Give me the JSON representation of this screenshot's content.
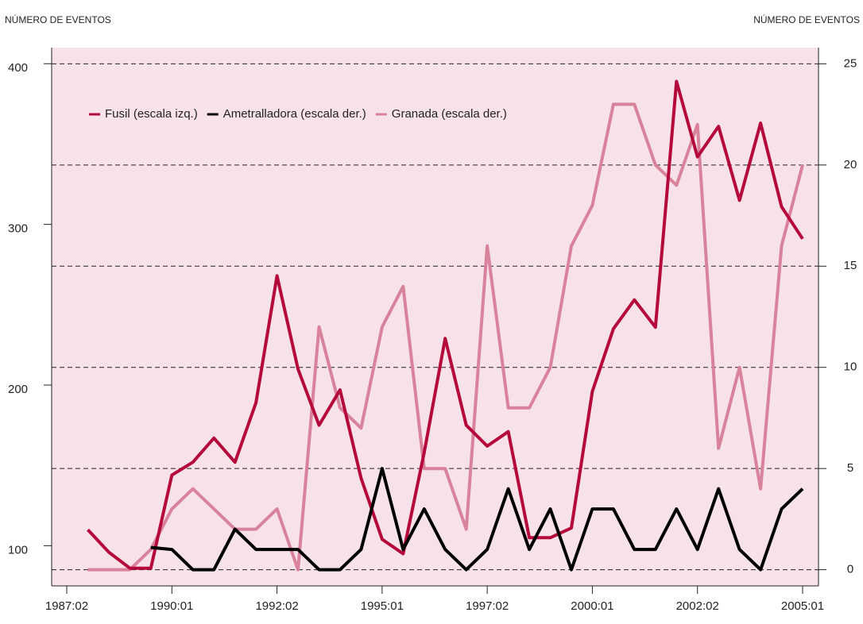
{
  "chart_data": {
    "type": "line",
    "y_label": "NÚMERO DE EVENTOS",
    "y2_label": "NÚMERO DE EVENTOS",
    "categories": [
      "1987:02",
      null,
      null,
      null,
      null,
      "1990:01",
      null,
      null,
      null,
      null,
      "1992:02",
      null,
      null,
      null,
      null,
      "1995:01",
      null,
      null,
      null,
      null,
      "1997:02",
      null,
      null,
      null,
      null,
      "2000:01",
      null,
      null,
      null,
      null,
      "2002:02",
      null,
      null,
      null,
      null,
      "2005:01"
    ],
    "series": [
      {
        "name": "Fusil (escala izq.)",
        "color": "#b5083b",
        "axis": "y",
        "values": [
          null,
          110,
          96,
          86,
          86,
          144,
          152,
          167,
          152,
          189,
          268,
          210,
          175,
          197,
          142,
          104,
          95,
          158,
          229,
          175,
          162,
          171,
          105,
          105,
          111,
          196,
          235,
          253,
          236,
          389,
          342,
          361,
          315,
          363,
          311,
          291
        ]
      },
      {
        "name": "Ametralladora (escala der.)",
        "color": "#000000",
        "axis": "y2",
        "values": [
          null,
          null,
          null,
          null,
          1.1,
          1,
          0,
          0,
          2,
          1,
          1,
          1,
          0,
          0,
          1,
          5,
          1,
          3,
          1,
          0,
          1,
          4,
          1,
          3,
          0,
          3,
          3,
          1,
          1,
          3,
          1,
          4,
          1,
          0,
          3,
          4
        ]
      },
      {
        "name": "Granada (escala der.)",
        "color": "#d9829c",
        "axis": "y2",
        "values": [
          null,
          0,
          0,
          0,
          1,
          3,
          4,
          3,
          2,
          2,
          3,
          0,
          12,
          8,
          7,
          12,
          14,
          5,
          5,
          2,
          16,
          8,
          8,
          10,
          16,
          18,
          23,
          23,
          20,
          19,
          22,
          6,
          10,
          4,
          16,
          20
        ]
      }
    ],
    "ylim": [
      75,
      410
    ],
    "yticks": [
      100,
      200,
      300,
      400
    ],
    "y2lim": [
      -0.8,
      25.8
    ],
    "y2ticks": [
      0,
      5,
      10,
      15,
      20,
      25
    ],
    "grid": true,
    "legend": "top-left",
    "background": "#f7e2e9"
  }
}
